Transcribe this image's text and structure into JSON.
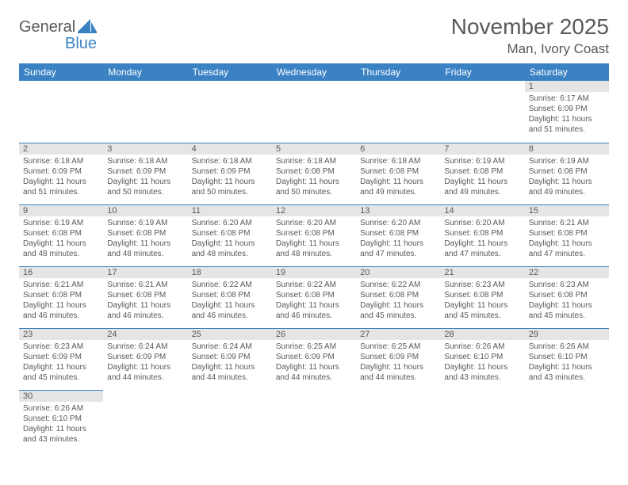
{
  "brand": {
    "part1": "General",
    "part2": "Blue"
  },
  "title": "November 2025",
  "location": "Man, Ivory Coast",
  "colors": {
    "header_bg": "#3b82c4",
    "header_text": "#ffffff",
    "daynum_bg": "#e5e5e5",
    "border": "#3b82c4",
    "text": "#595959",
    "background": "#ffffff"
  },
  "weekdays": [
    "Sunday",
    "Monday",
    "Tuesday",
    "Wednesday",
    "Thursday",
    "Friday",
    "Saturday"
  ],
  "weeks": [
    [
      null,
      null,
      null,
      null,
      null,
      null,
      {
        "n": "1",
        "sr": "6:17 AM",
        "ss": "6:09 PM",
        "dl": "11 hours and 51 minutes."
      }
    ],
    [
      {
        "n": "2",
        "sr": "6:18 AM",
        "ss": "6:09 PM",
        "dl": "11 hours and 51 minutes."
      },
      {
        "n": "3",
        "sr": "6:18 AM",
        "ss": "6:09 PM",
        "dl": "11 hours and 50 minutes."
      },
      {
        "n": "4",
        "sr": "6:18 AM",
        "ss": "6:09 PM",
        "dl": "11 hours and 50 minutes."
      },
      {
        "n": "5",
        "sr": "6:18 AM",
        "ss": "6:08 PM",
        "dl": "11 hours and 50 minutes."
      },
      {
        "n": "6",
        "sr": "6:18 AM",
        "ss": "6:08 PM",
        "dl": "11 hours and 49 minutes."
      },
      {
        "n": "7",
        "sr": "6:19 AM",
        "ss": "6:08 PM",
        "dl": "11 hours and 49 minutes."
      },
      {
        "n": "8",
        "sr": "6:19 AM",
        "ss": "6:08 PM",
        "dl": "11 hours and 49 minutes."
      }
    ],
    [
      {
        "n": "9",
        "sr": "6:19 AM",
        "ss": "6:08 PM",
        "dl": "11 hours and 48 minutes."
      },
      {
        "n": "10",
        "sr": "6:19 AM",
        "ss": "6:08 PM",
        "dl": "11 hours and 48 minutes."
      },
      {
        "n": "11",
        "sr": "6:20 AM",
        "ss": "6:08 PM",
        "dl": "11 hours and 48 minutes."
      },
      {
        "n": "12",
        "sr": "6:20 AM",
        "ss": "6:08 PM",
        "dl": "11 hours and 48 minutes."
      },
      {
        "n": "13",
        "sr": "6:20 AM",
        "ss": "6:08 PM",
        "dl": "11 hours and 47 minutes."
      },
      {
        "n": "14",
        "sr": "6:20 AM",
        "ss": "6:08 PM",
        "dl": "11 hours and 47 minutes."
      },
      {
        "n": "15",
        "sr": "6:21 AM",
        "ss": "6:08 PM",
        "dl": "11 hours and 47 minutes."
      }
    ],
    [
      {
        "n": "16",
        "sr": "6:21 AM",
        "ss": "6:08 PM",
        "dl": "11 hours and 46 minutes."
      },
      {
        "n": "17",
        "sr": "6:21 AM",
        "ss": "6:08 PM",
        "dl": "11 hours and 46 minutes."
      },
      {
        "n": "18",
        "sr": "6:22 AM",
        "ss": "6:08 PM",
        "dl": "11 hours and 46 minutes."
      },
      {
        "n": "19",
        "sr": "6:22 AM",
        "ss": "6:08 PM",
        "dl": "11 hours and 46 minutes."
      },
      {
        "n": "20",
        "sr": "6:22 AM",
        "ss": "6:08 PM",
        "dl": "11 hours and 45 minutes."
      },
      {
        "n": "21",
        "sr": "6:23 AM",
        "ss": "6:08 PM",
        "dl": "11 hours and 45 minutes."
      },
      {
        "n": "22",
        "sr": "6:23 AM",
        "ss": "6:08 PM",
        "dl": "11 hours and 45 minutes."
      }
    ],
    [
      {
        "n": "23",
        "sr": "6:23 AM",
        "ss": "6:09 PM",
        "dl": "11 hours and 45 minutes."
      },
      {
        "n": "24",
        "sr": "6:24 AM",
        "ss": "6:09 PM",
        "dl": "11 hours and 44 minutes."
      },
      {
        "n": "25",
        "sr": "6:24 AM",
        "ss": "6:09 PM",
        "dl": "11 hours and 44 minutes."
      },
      {
        "n": "26",
        "sr": "6:25 AM",
        "ss": "6:09 PM",
        "dl": "11 hours and 44 minutes."
      },
      {
        "n": "27",
        "sr": "6:25 AM",
        "ss": "6:09 PM",
        "dl": "11 hours and 44 minutes."
      },
      {
        "n": "28",
        "sr": "6:26 AM",
        "ss": "6:10 PM",
        "dl": "11 hours and 43 minutes."
      },
      {
        "n": "29",
        "sr": "6:26 AM",
        "ss": "6:10 PM",
        "dl": "11 hours and 43 minutes."
      }
    ],
    [
      {
        "n": "30",
        "sr": "6:26 AM",
        "ss": "6:10 PM",
        "dl": "11 hours and 43 minutes."
      },
      null,
      null,
      null,
      null,
      null,
      null
    ]
  ],
  "labels": {
    "sunrise": "Sunrise:",
    "sunset": "Sunset:",
    "daylight": "Daylight:"
  }
}
